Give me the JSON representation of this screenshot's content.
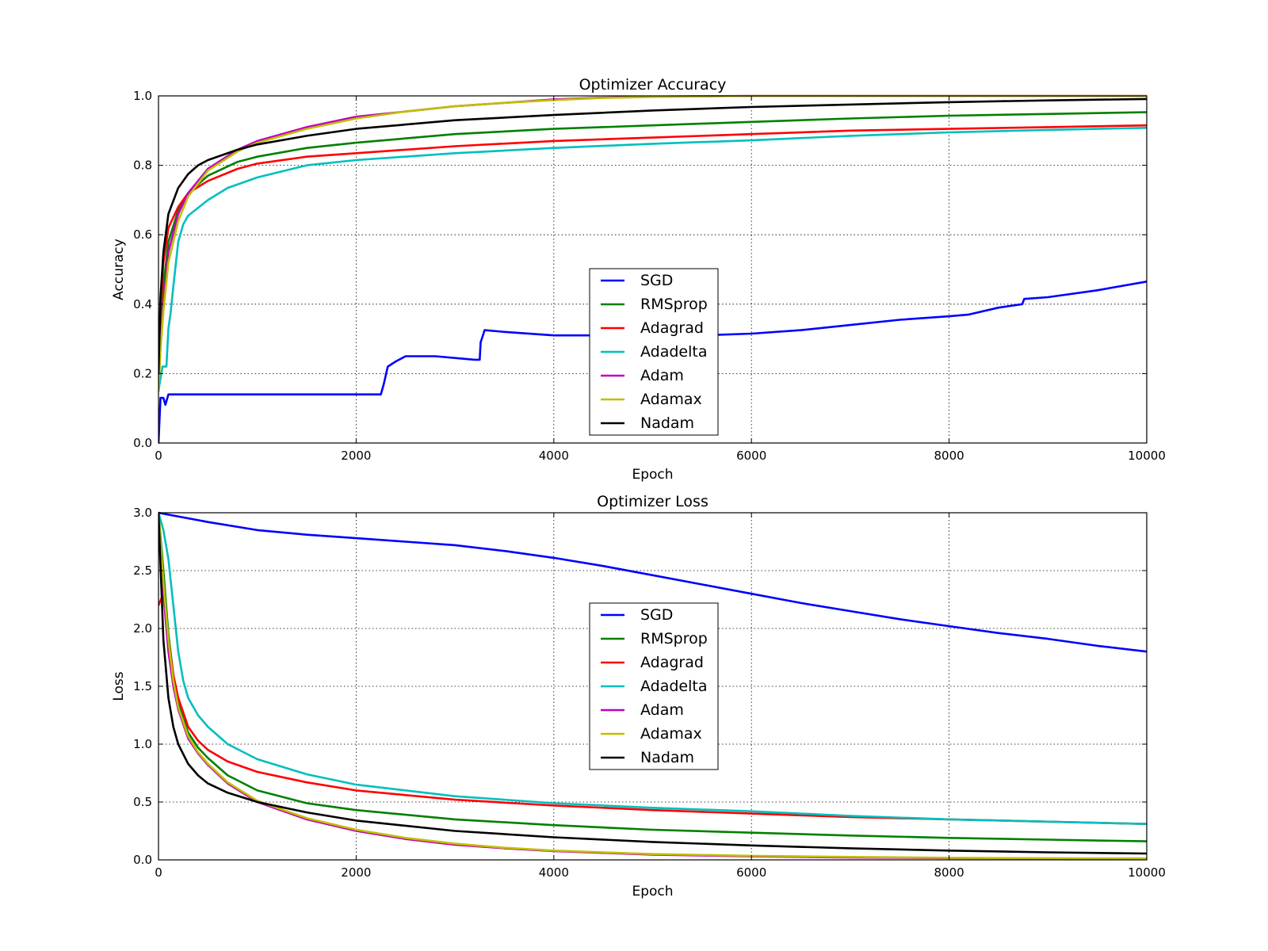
{
  "chart_data": [
    {
      "type": "line",
      "title": "Optimizer Accuracy",
      "xlabel": "Epoch",
      "ylabel": "Accuracy",
      "xlim": [
        0,
        10000
      ],
      "ylim": [
        0.0,
        1.0
      ],
      "xticks": [
        0,
        2000,
        4000,
        6000,
        8000,
        10000
      ],
      "yticks": [
        0.0,
        0.2,
        0.4,
        0.6,
        0.8,
        1.0
      ],
      "ytick_labels": [
        "0.0",
        "0.2",
        "0.4",
        "0.6",
        "0.8",
        "1.0"
      ],
      "grid": true,
      "legend_position": "center",
      "series": [
        {
          "name": "SGD",
          "color": "#0000ff",
          "x": [
            0,
            20,
            50,
            70,
            100,
            500,
            1000,
            2000,
            2250,
            2280,
            2320,
            2400,
            2500,
            2800,
            3200,
            3250,
            3260,
            3300,
            3500,
            4000,
            4500,
            5000,
            5500,
            6000,
            6500,
            7000,
            7500,
            8000,
            8200,
            8500,
            8740,
            8760,
            9000,
            9500,
            10000
          ],
          "y": [
            0.0,
            0.13,
            0.13,
            0.11,
            0.14,
            0.14,
            0.14,
            0.14,
            0.14,
            0.17,
            0.22,
            0.235,
            0.25,
            0.25,
            0.24,
            0.24,
            0.29,
            0.325,
            0.32,
            0.31,
            0.31,
            0.31,
            0.31,
            0.315,
            0.325,
            0.34,
            0.355,
            0.365,
            0.37,
            0.39,
            0.4,
            0.415,
            0.42,
            0.44,
            0.465
          ]
        },
        {
          "name": "RMSprop",
          "color": "#008000",
          "x": [
            0,
            20,
            50,
            100,
            200,
            300,
            500,
            800,
            1000,
            1500,
            2000,
            3000,
            4000,
            5000,
            6000,
            7000,
            8000,
            9000,
            10000
          ],
          "y": [
            0.15,
            0.3,
            0.45,
            0.58,
            0.67,
            0.72,
            0.77,
            0.81,
            0.825,
            0.85,
            0.865,
            0.89,
            0.905,
            0.915,
            0.925,
            0.935,
            0.943,
            0.948,
            0.953
          ]
        },
        {
          "name": "Adagrad",
          "color": "#ff0000",
          "x": [
            0,
            20,
            50,
            100,
            200,
            300,
            500,
            800,
            1000,
            1500,
            2000,
            3000,
            4000,
            5000,
            6000,
            7000,
            8000,
            9000,
            10000
          ],
          "y": [
            0.2,
            0.38,
            0.52,
            0.62,
            0.68,
            0.72,
            0.755,
            0.79,
            0.805,
            0.825,
            0.835,
            0.855,
            0.87,
            0.88,
            0.89,
            0.9,
            0.905,
            0.91,
            0.915
          ]
        },
        {
          "name": "Adadelta",
          "color": "#00bfbf",
          "x": [
            0,
            40,
            60,
            80,
            100,
            120,
            150,
            200,
            250,
            300,
            500,
            700,
            1000,
            1500,
            2000,
            3000,
            4000,
            5000,
            6000,
            7000,
            8000,
            9000,
            10000
          ],
          "y": [
            0.15,
            0.22,
            0.22,
            0.22,
            0.33,
            0.37,
            0.45,
            0.58,
            0.63,
            0.655,
            0.7,
            0.735,
            0.765,
            0.8,
            0.815,
            0.835,
            0.85,
            0.862,
            0.872,
            0.885,
            0.895,
            0.902,
            0.908
          ]
        },
        {
          "name": "Adam",
          "color": "#bf00bf",
          "x": [
            0,
            20,
            50,
            100,
            200,
            300,
            500,
            800,
            1000,
            1500,
            2000,
            2500,
            3000,
            3500,
            4000,
            4500,
            5000,
            6000,
            7000,
            8000,
            9000,
            10000
          ],
          "y": [
            0.15,
            0.28,
            0.4,
            0.55,
            0.66,
            0.72,
            0.79,
            0.845,
            0.87,
            0.91,
            0.94,
            0.955,
            0.97,
            0.98,
            0.99,
            0.995,
            0.998,
            1.0,
            1.0,
            1.0,
            1.0,
            1.0
          ]
        },
        {
          "name": "Adamax",
          "color": "#bfbf00",
          "x": [
            0,
            20,
            50,
            100,
            200,
            300,
            500,
            800,
            1000,
            1500,
            2000,
            2500,
            3000,
            3500,
            4000,
            4500,
            5000,
            6000,
            7000,
            8000,
            9000,
            10000
          ],
          "y": [
            0.15,
            0.27,
            0.38,
            0.52,
            0.64,
            0.71,
            0.785,
            0.84,
            0.865,
            0.905,
            0.935,
            0.955,
            0.97,
            0.98,
            0.988,
            0.994,
            0.997,
            1.0,
            1.0,
            1.0,
            1.0,
            1.0
          ]
        },
        {
          "name": "Nadam",
          "color": "#000000",
          "x": [
            0,
            20,
            50,
            100,
            200,
            300,
            400,
            500,
            800,
            1000,
            1500,
            2000,
            3000,
            4000,
            5000,
            6000,
            7000,
            8000,
            9000,
            10000
          ],
          "y": [
            0.2,
            0.42,
            0.55,
            0.66,
            0.735,
            0.775,
            0.8,
            0.815,
            0.845,
            0.86,
            0.885,
            0.905,
            0.93,
            0.945,
            0.958,
            0.968,
            0.975,
            0.982,
            0.987,
            0.991
          ]
        }
      ]
    },
    {
      "type": "line",
      "title": "Optimizer Loss",
      "xlabel": "Epoch",
      "ylabel": "Loss",
      "xlim": [
        0,
        10000
      ],
      "ylim": [
        0.0,
        3.0
      ],
      "xticks": [
        0,
        2000,
        4000,
        6000,
        8000,
        10000
      ],
      "yticks": [
        0.0,
        0.5,
        1.0,
        1.5,
        2.0,
        2.5,
        3.0
      ],
      "ytick_labels": [
        "0.0",
        "0.5",
        "1.0",
        "1.5",
        "2.0",
        "2.5",
        "3.0"
      ],
      "grid": true,
      "legend_position": "center",
      "series": [
        {
          "name": "SGD",
          "color": "#0000ff",
          "x": [
            0,
            500,
            1000,
            1500,
            2000,
            2500,
            3000,
            3500,
            4000,
            4500,
            5000,
            5500,
            6000,
            6500,
            7000,
            7500,
            8000,
            8500,
            9000,
            9500,
            10000
          ],
          "y": [
            3.0,
            2.92,
            2.85,
            2.81,
            2.78,
            2.75,
            2.72,
            2.67,
            2.61,
            2.54,
            2.46,
            2.38,
            2.3,
            2.22,
            2.15,
            2.08,
            2.02,
            1.96,
            1.91,
            1.85,
            1.8
          ]
        },
        {
          "name": "RMSprop",
          "color": "#008000",
          "x": [
            0,
            50,
            100,
            150,
            200,
            300,
            400,
            500,
            700,
            1000,
            1500,
            2000,
            3000,
            4000,
            5000,
            6000,
            7000,
            8000,
            9000,
            10000
          ],
          "y": [
            3.0,
            2.5,
            1.95,
            1.6,
            1.35,
            1.1,
            0.97,
            0.88,
            0.73,
            0.6,
            0.49,
            0.43,
            0.35,
            0.3,
            0.26,
            0.235,
            0.21,
            0.19,
            0.175,
            0.16
          ]
        },
        {
          "name": "Adagrad",
          "color": "#ff0000",
          "x": [
            0,
            50,
            100,
            150,
            200,
            300,
            400,
            500,
            700,
            1000,
            1500,
            2000,
            3000,
            4000,
            5000,
            6000,
            7000,
            8000,
            9000,
            10000
          ],
          "y": [
            2.2,
            2.3,
            1.9,
            1.6,
            1.4,
            1.15,
            1.03,
            0.95,
            0.85,
            0.76,
            0.67,
            0.6,
            0.52,
            0.47,
            0.43,
            0.4,
            0.37,
            0.35,
            0.33,
            0.31
          ]
        },
        {
          "name": "Adadelta",
          "color": "#00bfbf",
          "x": [
            0,
            50,
            100,
            150,
            200,
            250,
            300,
            400,
            500,
            700,
            1000,
            1500,
            2000,
            3000,
            4000,
            5000,
            6000,
            7000,
            8000,
            9000,
            10000
          ],
          "y": [
            3.0,
            2.85,
            2.6,
            2.2,
            1.8,
            1.55,
            1.4,
            1.25,
            1.15,
            1.0,
            0.87,
            0.74,
            0.65,
            0.55,
            0.49,
            0.45,
            0.42,
            0.38,
            0.35,
            0.33,
            0.31
          ]
        },
        {
          "name": "Adam",
          "color": "#bf00bf",
          "x": [
            0,
            50,
            100,
            150,
            200,
            300,
            400,
            500,
            700,
            1000,
            1500,
            2000,
            2500,
            3000,
            3500,
            4000,
            5000,
            6000,
            7000,
            8000,
            9000,
            10000
          ],
          "y": [
            3.0,
            2.3,
            1.8,
            1.5,
            1.3,
            1.05,
            0.92,
            0.82,
            0.66,
            0.5,
            0.35,
            0.25,
            0.18,
            0.13,
            0.1,
            0.075,
            0.045,
            0.03,
            0.02,
            0.015,
            0.012,
            0.01
          ]
        },
        {
          "name": "Adamax",
          "color": "#bfbf00",
          "x": [
            0,
            50,
            100,
            150,
            200,
            300,
            400,
            500,
            700,
            1000,
            1500,
            2000,
            2500,
            3000,
            3500,
            4000,
            5000,
            6000,
            7000,
            8000,
            9000,
            10000
          ],
          "y": [
            3.0,
            2.4,
            1.9,
            1.55,
            1.32,
            1.07,
            0.93,
            0.83,
            0.67,
            0.51,
            0.36,
            0.26,
            0.19,
            0.14,
            0.105,
            0.08,
            0.05,
            0.035,
            0.025,
            0.018,
            0.014,
            0.012
          ]
        },
        {
          "name": "Nadam",
          "color": "#000000",
          "x": [
            0,
            50,
            100,
            150,
            200,
            300,
            400,
            500,
            700,
            1000,
            1500,
            2000,
            3000,
            4000,
            5000,
            6000,
            7000,
            8000,
            9000,
            10000
          ],
          "y": [
            3.0,
            1.9,
            1.4,
            1.15,
            1.0,
            0.83,
            0.73,
            0.66,
            0.58,
            0.5,
            0.41,
            0.34,
            0.25,
            0.195,
            0.155,
            0.125,
            0.1,
            0.08,
            0.065,
            0.055
          ]
        }
      ]
    }
  ]
}
